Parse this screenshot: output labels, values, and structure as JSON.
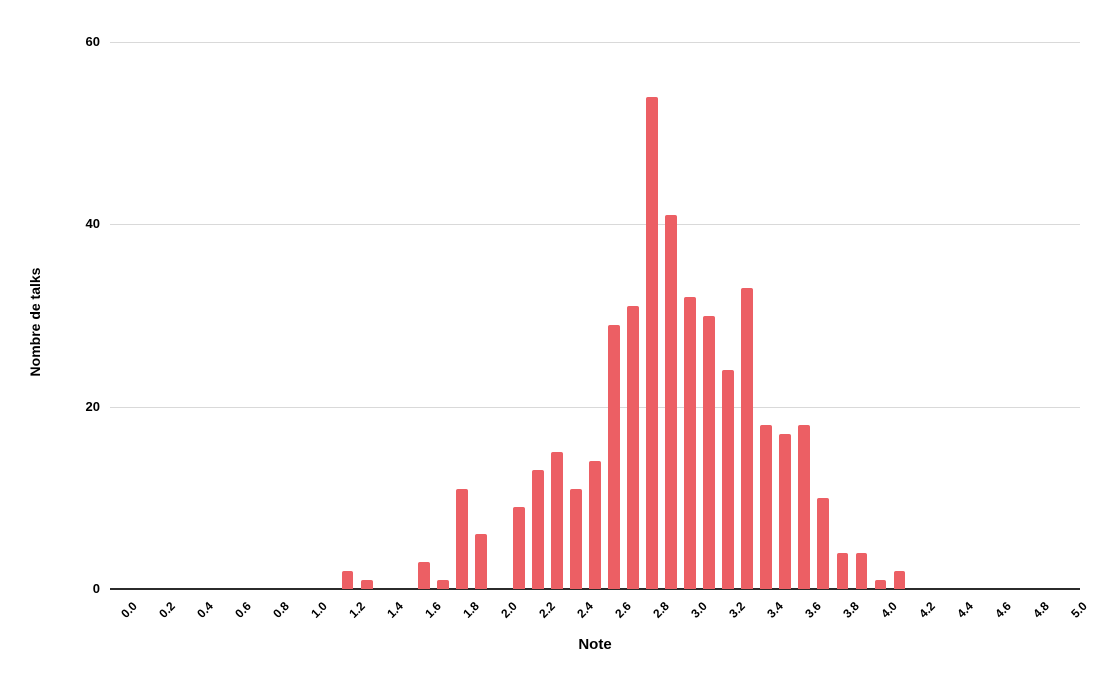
{
  "chart_data": {
    "type": "bar",
    "title": "",
    "xlabel": "Note",
    "ylabel": "Nombre de talks",
    "bin_width": 0.1,
    "x": [
      0.0,
      0.1,
      0.2,
      0.3,
      0.4,
      0.5,
      0.6,
      0.7,
      0.8,
      0.9,
      1.0,
      1.1,
      1.2,
      1.3,
      1.4,
      1.5,
      1.6,
      1.7,
      1.8,
      1.9,
      2.0,
      2.1,
      2.2,
      2.3,
      2.4,
      2.5,
      2.6,
      2.7,
      2.8,
      2.9,
      3.0,
      3.1,
      3.2,
      3.3,
      3.4,
      3.5,
      3.6,
      3.7,
      3.8,
      3.9,
      4.0,
      4.1,
      4.2,
      4.3,
      4.4,
      4.5,
      4.6,
      4.7,
      4.8,
      4.9,
      5.0
    ],
    "values": [
      0,
      0,
      0,
      0,
      0,
      0,
      0,
      0,
      0,
      0,
      0,
      0,
      2,
      1,
      0,
      0,
      3,
      1,
      11,
      6,
      0,
      9,
      13,
      15,
      11,
      14,
      29,
      31,
      54,
      41,
      32,
      30,
      24,
      33,
      18,
      17,
      18,
      10,
      4,
      4,
      1,
      2,
      0,
      0,
      0,
      0,
      0,
      0,
      0,
      0,
      0
    ],
    "x_tick_labels": [
      "0.0",
      "0.2",
      "0.4",
      "0.6",
      "0.8",
      "1.0",
      "1.2",
      "1.4",
      "1.6",
      "1.8",
      "2.0",
      "2.2",
      "2.4",
      "2.6",
      "2.8",
      "3.0",
      "3.2",
      "3.4",
      "3.6",
      "3.8",
      "4.0",
      "4.2",
      "4.4",
      "4.6",
      "4.8",
      "5.0"
    ],
    "y_ticks": [
      0,
      20,
      40,
      60
    ],
    "ylim": [
      0,
      60
    ],
    "xlim": [
      0.0,
      5.0
    ],
    "grid": "horizontal",
    "legend": "none"
  },
  "colors": {
    "bar": "#ec5f64",
    "gridline": "#d9d9d9",
    "axis_line": "#2b2b2b",
    "text": "#000000",
    "background": "#ffffff"
  }
}
